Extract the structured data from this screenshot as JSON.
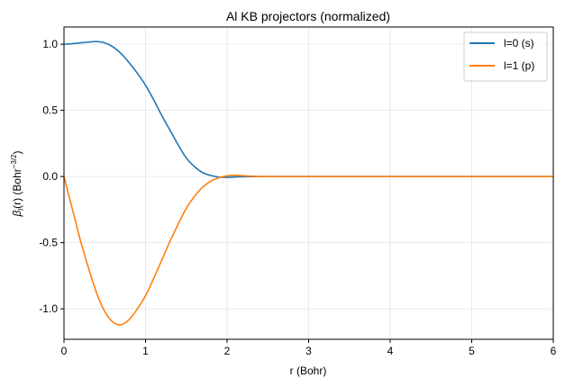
{
  "chart_data": {
    "type": "line",
    "title": "Al KB projectors (normalized)",
    "xlabel": "r (Bohr)",
    "ylabel_main": "β",
    "ylabel_sub": "l",
    "ylabel_rest": "(r) (Bohr",
    "ylabel_sup": "−3/2",
    "ylabel_close": ")",
    "xlim": [
      0,
      6
    ],
    "ylim": [
      -1.23,
      1.13
    ],
    "xticks": [
      0,
      1,
      2,
      3,
      4,
      5,
      6
    ],
    "xtick_labels": [
      "0",
      "1",
      "2",
      "3",
      "4",
      "5",
      "6"
    ],
    "yticks": [
      -1.0,
      -0.5,
      0.0,
      0.5,
      1.0
    ],
    "ytick_labels": [
      "-1.0",
      "-0.5",
      "0.0",
      "0.5",
      "1.0"
    ],
    "grid": true,
    "legend_placement": "top-right",
    "x": [
      0,
      0.1,
      0.2,
      0.3,
      0.4,
      0.5,
      0.6,
      0.7,
      0.8,
      0.9,
      1.0,
      1.1,
      1.2,
      1.3,
      1.4,
      1.5,
      1.6,
      1.7,
      1.8,
      1.9,
      2.0,
      2.1,
      2.2,
      2.3,
      2.5,
      3,
      4,
      5,
      6
    ],
    "series": [
      {
        "name": "l=0 (s)",
        "color": "#1f77b4",
        "values": [
          1.0,
          1.004,
          1.01,
          1.016,
          1.02,
          1.01,
          0.98,
          0.93,
          0.86,
          0.78,
          0.69,
          0.58,
          0.46,
          0.35,
          0.24,
          0.14,
          0.075,
          0.03,
          0.008,
          -0.004,
          -0.006,
          -0.003,
          -0.001,
          0,
          0,
          0,
          0,
          0,
          0
        ]
      },
      {
        "name": "l=1 (p)",
        "color": "#ff7f0e",
        "values": [
          0,
          -0.24,
          -0.48,
          -0.69,
          -0.88,
          -1.02,
          -1.1,
          -1.12,
          -1.08,
          -1.0,
          -0.9,
          -0.77,
          -0.63,
          -0.49,
          -0.36,
          -0.24,
          -0.15,
          -0.08,
          -0.035,
          -0.008,
          0.005,
          0.01,
          0.006,
          0.002,
          0,
          0,
          0,
          0,
          0
        ]
      }
    ]
  }
}
